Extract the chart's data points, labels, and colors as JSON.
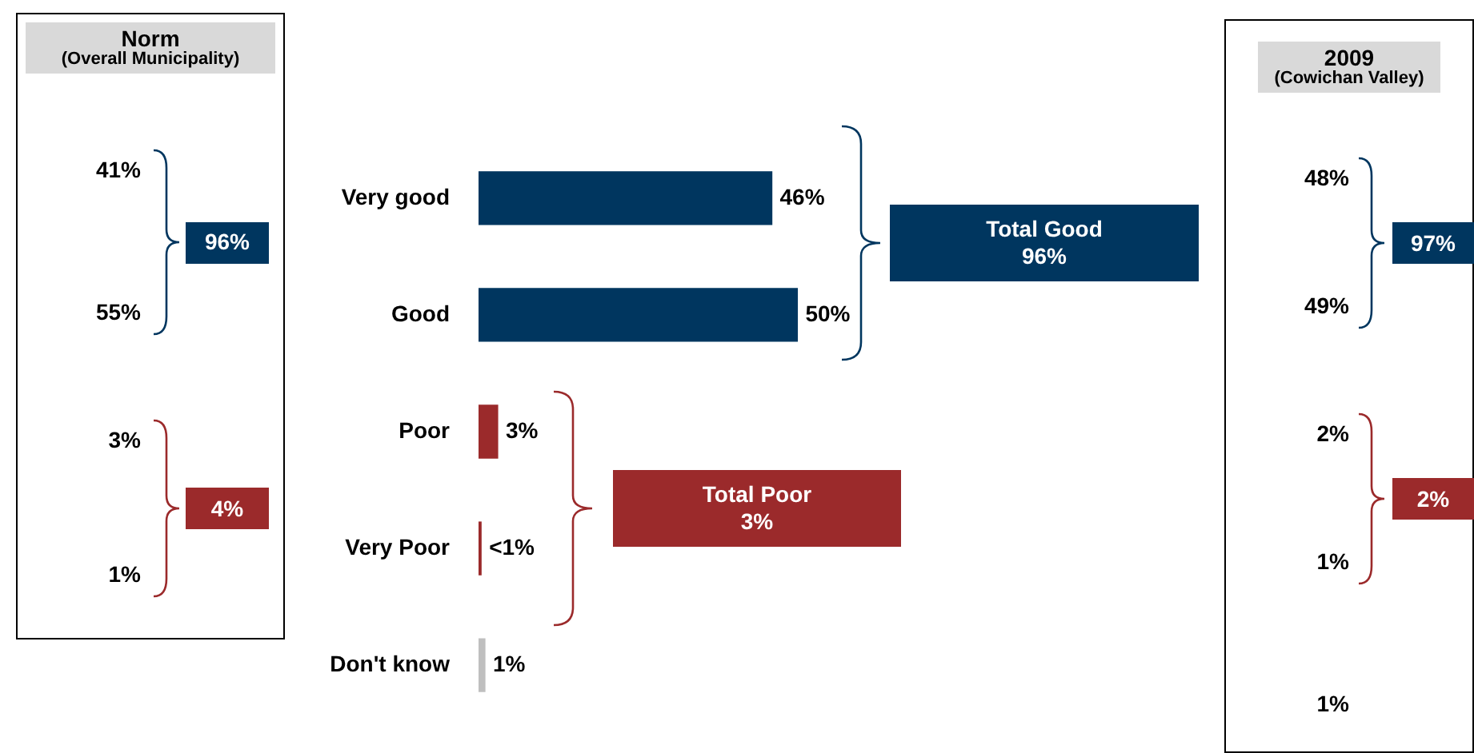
{
  "chart_data": [
    {
      "type": "other",
      "title": "Norm",
      "subtitle": "(Overall Municipality)",
      "categories": [
        null,
        null,
        null,
        null
      ],
      "values": [
        41,
        55,
        3,
        1
      ],
      "value_labels": [
        "41%",
        "55%",
        "3%",
        "1%"
      ],
      "totals": [
        "96%",
        "4%"
      ],
      "colors": [
        "#00365f",
        "#00365f",
        "#9b2a2b",
        "#9b2a2b"
      ]
    },
    {
      "type": "bar",
      "orientation": "horizontal",
      "categories": [
        "Very good",
        "Good",
        "Poor",
        "Very Poor",
        "Don't know"
      ],
      "values": [
        46,
        50,
        3,
        0.4,
        1
      ],
      "colors": [
        "#00365f",
        "#00365f",
        "#9b2a2b",
        "#9b2a2b",
        "#bfbfbf"
      ],
      "value_labels": [
        "46%",
        "50%",
        "3%",
        "<1%",
        "1%"
      ],
      "annotations": [
        "Total Good\n96%",
        "Total Poor\n3%"
      ],
      "legend": false,
      "grid": false
    },
    {
      "type": "other",
      "title": "2009",
      "subtitle": "(Cowichan Valley)",
      "categories": [
        null,
        null,
        null,
        null,
        null
      ],
      "values": [
        48,
        49,
        2,
        1,
        1
      ],
      "value_labels": [
        "48%",
        "49%",
        "2%",
        "1%",
        "1%"
      ],
      "totals": [
        "97%",
        "2%"
      ],
      "colors": [
        "#00365f",
        "#00365f",
        "#9b2a2b",
        "#9b2a2b",
        "#000000"
      ]
    }
  ]
}
